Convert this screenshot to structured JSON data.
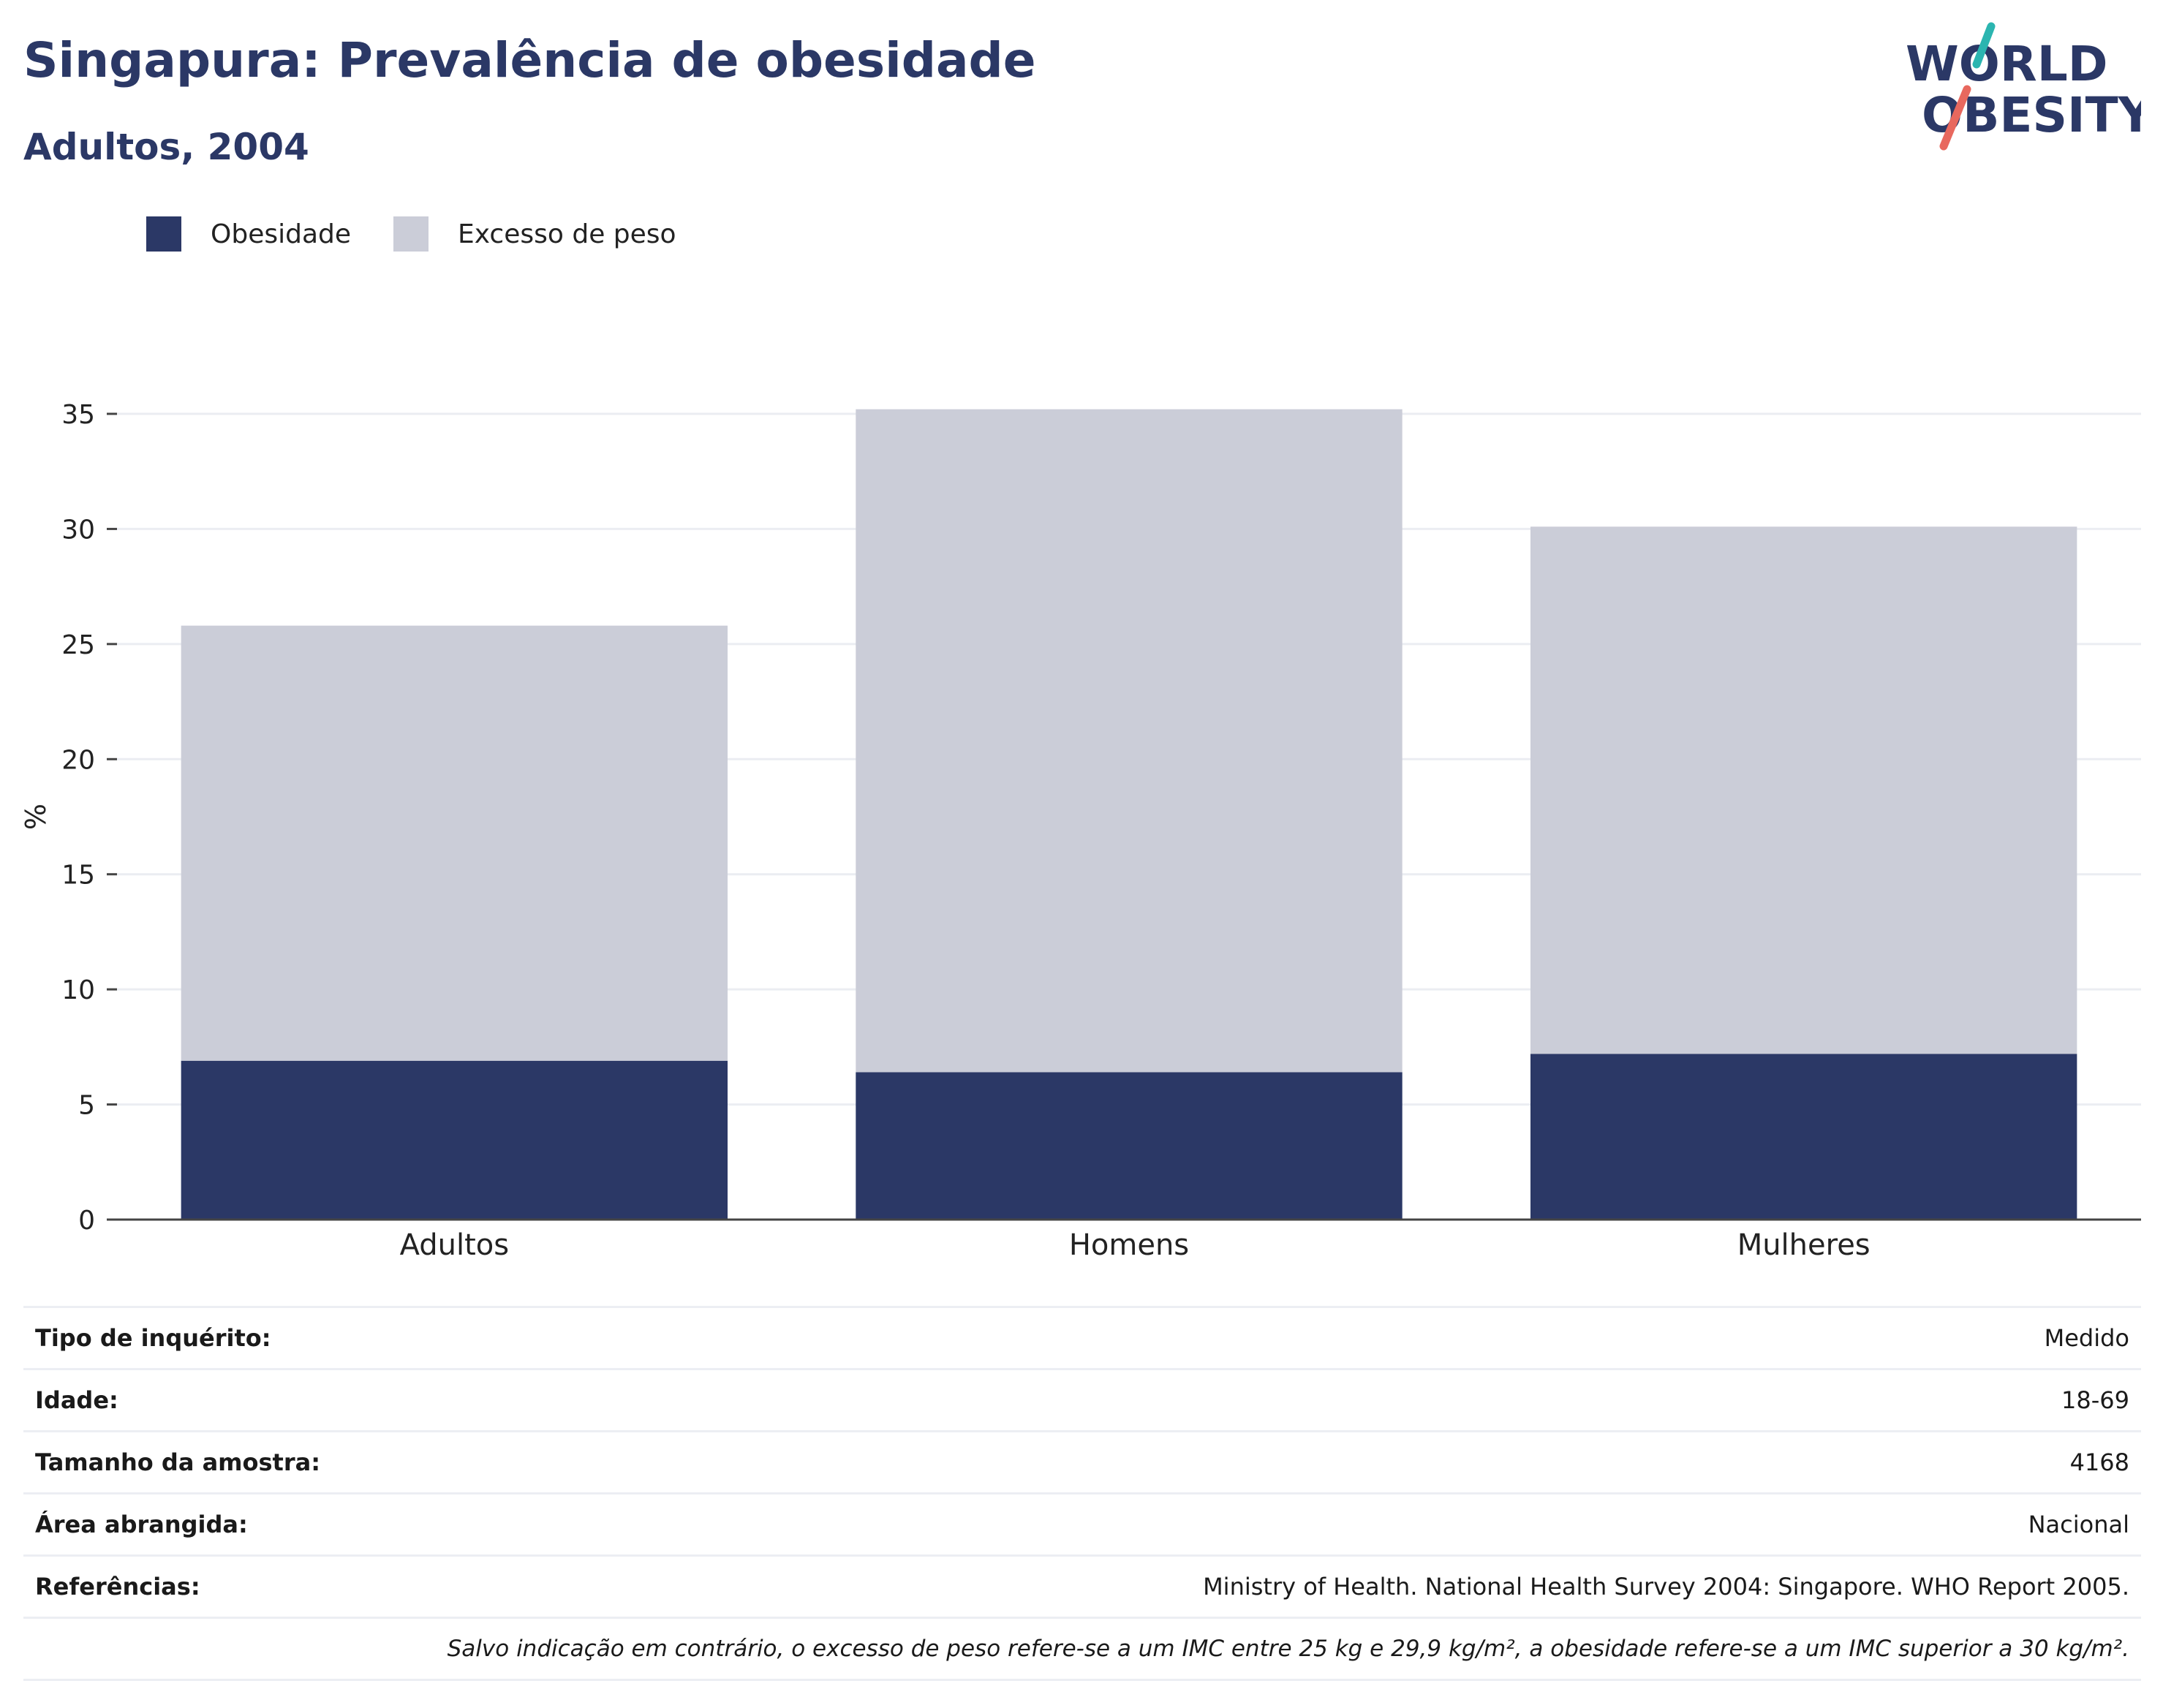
{
  "header": {
    "title": "Singapura: Prevalência de obesidade",
    "subtitle": "Adultos, 2004"
  },
  "logo": {
    "line1": "WORLD",
    "line2": "OBESITY",
    "colors": {
      "text": "#2b3866",
      "teal": "#2bb5b0",
      "coral": "#e8685e"
    }
  },
  "legend": [
    {
      "label": "Obesidade",
      "color": "#2b3866"
    },
    {
      "label": "Excesso de peso",
      "color": "#cbcdd8"
    }
  ],
  "chart_data": {
    "type": "bar",
    "stacked": true,
    "categories": [
      "Adultos",
      "Homens",
      "Mulheres"
    ],
    "series": [
      {
        "name": "Obesidade",
        "values": [
          6.9,
          6.4,
          7.2
        ],
        "color": "#2b3866"
      },
      {
        "name": "Excesso de peso",
        "values": [
          18.9,
          28.8,
          22.9
        ],
        "color": "#cbcdd8"
      }
    ],
    "xlabel": "",
    "ylabel": "%",
    "ylim": [
      0,
      35
    ],
    "yticks": [
      0,
      5,
      10,
      15,
      20,
      25,
      30,
      35
    ],
    "grid": true,
    "legend_position": "top-left"
  },
  "info": {
    "rows": [
      {
        "label": "Tipo de inquérito:",
        "value": "Medido"
      },
      {
        "label": "Idade:",
        "value": "18-69"
      },
      {
        "label": "Tamanho da amostra:",
        "value": "4168"
      },
      {
        "label": "Área abrangida:",
        "value": "Nacional"
      },
      {
        "label": "Referências:",
        "value": "Ministry of Health. National Health Survey 2004: Singapore. WHO Report 2005."
      }
    ],
    "note": "Salvo indicação em contrário, o excesso de peso refere-se a um IMC entre 25 kg e 29,9 kg/m², a obesidade refere-se a um IMC superior a 30 kg/m²."
  }
}
